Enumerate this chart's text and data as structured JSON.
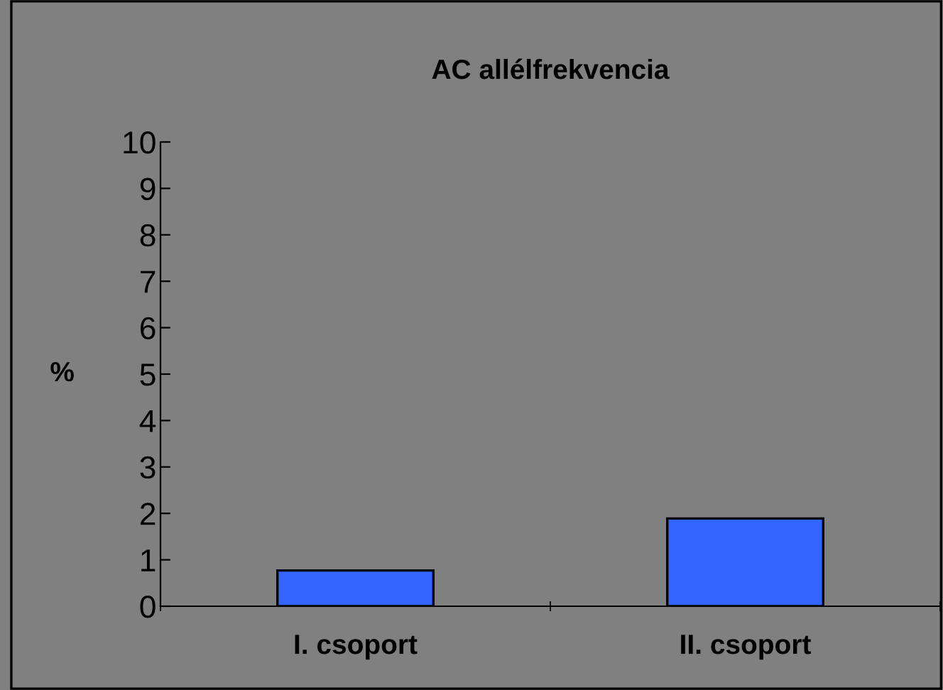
{
  "chart_data": {
    "type": "bar",
    "title": "AC allélfrekvencia",
    "ylabel": "%",
    "categories": [
      "I. csoport",
      "II. csoport"
    ],
    "values": [
      0.77,
      1.89
    ],
    "color": "#3366ff",
    "ylim": [
      0,
      10
    ],
    "yticks": [
      0,
      1,
      2,
      3,
      4,
      5,
      6,
      7,
      8,
      9,
      10
    ],
    "grid": false,
    "legend": false
  }
}
